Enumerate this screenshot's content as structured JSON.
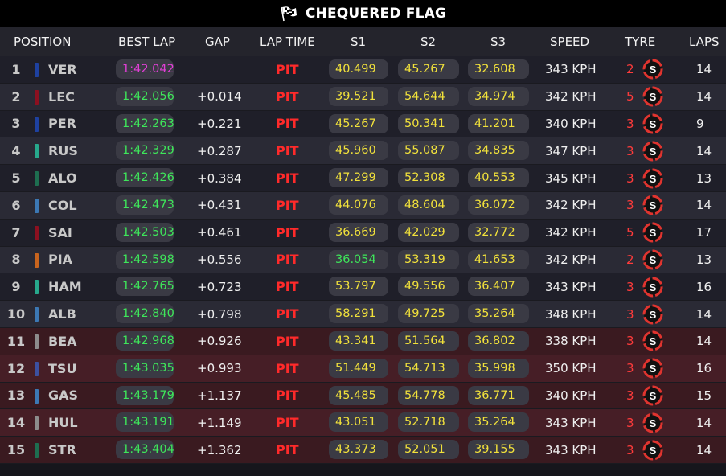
{
  "title": "CHEQUERED FLAG",
  "headers": {
    "position": "POSITION",
    "best_lap": "BEST LAP",
    "gap": "GAP",
    "lap_time": "LAP TIME",
    "s1": "S1",
    "s2": "S2",
    "s3": "S3",
    "speed": "SPEED",
    "tyre": "TYRE",
    "laps": "LAPS"
  },
  "colors": {
    "tyre_soft_red": "#e0342f",
    "best_lap_green": "#3ee65a",
    "fastest_purple": "#e23fd7",
    "sector_yellow": "#f1e13b",
    "pit_red": "#ff2a2a"
  },
  "rows": [
    {
      "pos": "1",
      "driver": "VER",
      "team_color": "#1e41a0",
      "best_lap": "1:42.042",
      "fastest": true,
      "gap": "",
      "lap_time": "PIT",
      "s1": "40.499",
      "s1_green": false,
      "s2": "45.267",
      "s3": "32.608",
      "speed": "343 KPH",
      "tyre_age": "2",
      "tyre": "S",
      "laps": "14"
    },
    {
      "pos": "2",
      "driver": "LEC",
      "team_color": "#8c1020",
      "best_lap": "1:42.056",
      "fastest": false,
      "gap": "+0.014",
      "lap_time": "PIT",
      "s1": "39.521",
      "s1_green": false,
      "s2": "54.644",
      "s3": "34.974",
      "speed": "342 KPH",
      "tyre_age": "5",
      "tyre": "S",
      "laps": "14"
    },
    {
      "pos": "3",
      "driver": "PER",
      "team_color": "#1e41a0",
      "best_lap": "1:42.263",
      "fastest": false,
      "gap": "+0.221",
      "lap_time": "PIT",
      "s1": "45.267",
      "s1_green": false,
      "s2": "50.341",
      "s3": "41.201",
      "speed": "340 KPH",
      "tyre_age": "3",
      "tyre": "S",
      "laps": "9"
    },
    {
      "pos": "4",
      "driver": "RUS",
      "team_color": "#27a88c",
      "best_lap": "1:42.329",
      "fastest": false,
      "gap": "+0.287",
      "lap_time": "PIT",
      "s1": "45.960",
      "s1_green": false,
      "s2": "55.087",
      "s3": "34.835",
      "speed": "347 KPH",
      "tyre_age": "3",
      "tyre": "S",
      "laps": "14"
    },
    {
      "pos": "5",
      "driver": "ALO",
      "team_color": "#1e6e50",
      "best_lap": "1:42.426",
      "fastest": false,
      "gap": "+0.384",
      "lap_time": "PIT",
      "s1": "47.299",
      "s1_green": false,
      "s2": "52.308",
      "s3": "40.553",
      "speed": "345 KPH",
      "tyre_age": "3",
      "tyre": "S",
      "laps": "13"
    },
    {
      "pos": "6",
      "driver": "COL",
      "team_color": "#3c78b4",
      "best_lap": "1:42.473",
      "fastest": false,
      "gap": "+0.431",
      "lap_time": "PIT",
      "s1": "44.076",
      "s1_green": false,
      "s2": "48.604",
      "s3": "36.072",
      "speed": "342 KPH",
      "tyre_age": "3",
      "tyre": "S",
      "laps": "14"
    },
    {
      "pos": "7",
      "driver": "SAI",
      "team_color": "#8c1020",
      "best_lap": "1:42.503",
      "fastest": false,
      "gap": "+0.461",
      "lap_time": "PIT",
      "s1": "36.669",
      "s1_green": false,
      "s2": "42.029",
      "s3": "32.772",
      "speed": "342 KPH",
      "tyre_age": "5",
      "tyre": "S",
      "laps": "17"
    },
    {
      "pos": "8",
      "driver": "PIA",
      "team_color": "#c8641e",
      "best_lap": "1:42.598",
      "fastest": false,
      "gap": "+0.556",
      "lap_time": "PIT",
      "s1": "36.054",
      "s1_green": true,
      "s2": "53.319",
      "s3": "41.653",
      "speed": "342 KPH",
      "tyre_age": "2",
      "tyre": "S",
      "laps": "13"
    },
    {
      "pos": "9",
      "driver": "HAM",
      "team_color": "#27a88c",
      "best_lap": "1:42.765",
      "fastest": false,
      "gap": "+0.723",
      "lap_time": "PIT",
      "s1": "53.797",
      "s1_green": false,
      "s2": "49.556",
      "s3": "36.407",
      "speed": "343 KPH",
      "tyre_age": "3",
      "tyre": "S",
      "laps": "16"
    },
    {
      "pos": "10",
      "driver": "ALB",
      "team_color": "#3c78b4",
      "best_lap": "1:42.840",
      "fastest": false,
      "gap": "+0.798",
      "lap_time": "PIT",
      "s1": "58.291",
      "s1_green": false,
      "s2": "49.725",
      "s3": "35.264",
      "speed": "348 KPH",
      "tyre_age": "3",
      "tyre": "S",
      "laps": "14"
    },
    {
      "pos": "11",
      "driver": "BEA",
      "team_color": "#8c8c8c",
      "best_lap": "1:42.968",
      "fastest": false,
      "gap": "+0.926",
      "lap_time": "PIT",
      "s1": "43.341",
      "s1_green": false,
      "s2": "51.564",
      "s3": "36.802",
      "speed": "338 KPH",
      "tyre_age": "3",
      "tyre": "S",
      "laps": "14"
    },
    {
      "pos": "12",
      "driver": "TSU",
      "team_color": "#3c50a0",
      "best_lap": "1:43.035",
      "fastest": false,
      "gap": "+0.993",
      "lap_time": "PIT",
      "s1": "51.449",
      "s1_green": false,
      "s2": "54.713",
      "s3": "35.998",
      "speed": "350 KPH",
      "tyre_age": "3",
      "tyre": "S",
      "laps": "16"
    },
    {
      "pos": "13",
      "driver": "GAS",
      "team_color": "#3c78b4",
      "best_lap": "1:43.179",
      "fastest": false,
      "gap": "+1.137",
      "lap_time": "PIT",
      "s1": "45.485",
      "s1_green": false,
      "s2": "54.778",
      "s3": "36.771",
      "speed": "340 KPH",
      "tyre_age": "3",
      "tyre": "S",
      "laps": "15"
    },
    {
      "pos": "14",
      "driver": "HUL",
      "team_color": "#8c8c8c",
      "best_lap": "1:43.191",
      "fastest": false,
      "gap": "+1.149",
      "lap_time": "PIT",
      "s1": "43.051",
      "s1_green": false,
      "s2": "52.718",
      "s3": "35.264",
      "speed": "343 KPH",
      "tyre_age": "3",
      "tyre": "S",
      "laps": "14"
    },
    {
      "pos": "15",
      "driver": "STR",
      "team_color": "#1e6e50",
      "best_lap": "1:43.404",
      "fastest": false,
      "gap": "+1.362",
      "lap_time": "PIT",
      "s1": "43.373",
      "s1_green": false,
      "s2": "52.051",
      "s3": "39.155",
      "speed": "343 KPH",
      "tyre_age": "3",
      "tyre": "S",
      "laps": "14"
    }
  ]
}
